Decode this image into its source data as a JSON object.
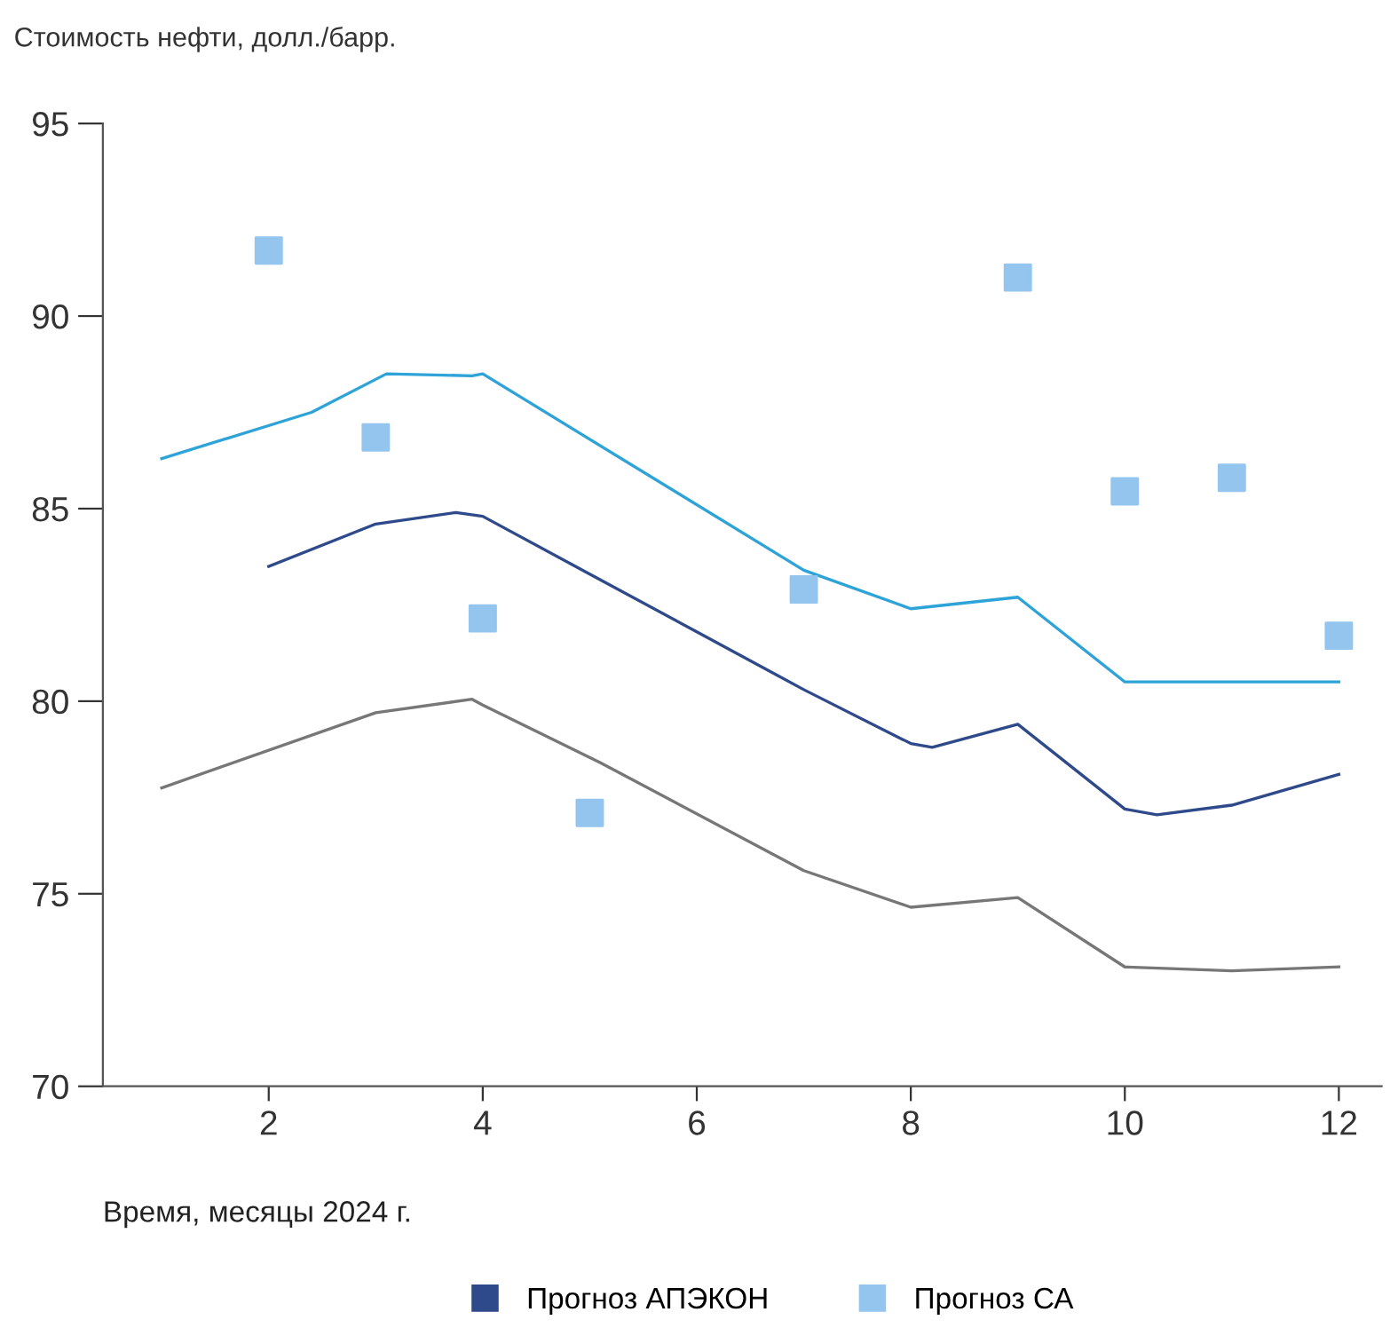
{
  "chart_data": {
    "type": "line",
    "ylabel": "Стоимость нефти, долл./барр.",
    "xlabel": "Время, месяцы 2024 г.",
    "xlim": [
      0.45,
      12.4
    ],
    "xticks": [
      2,
      4,
      6,
      8,
      10,
      12
    ],
    "ylim": [
      70,
      95
    ],
    "yticks": [
      70,
      75,
      80,
      85,
      90,
      95
    ],
    "grid": false,
    "legend": "bottom",
    "series": [
      {
        "color": "#2ea3d8",
        "x": [
          1,
          2.4,
          3.1,
          3.9,
          4,
          7,
          8,
          9,
          10,
          12
        ],
        "values": [
          86.3,
          87.5,
          88.5,
          88.45,
          88.5,
          83.4,
          82.4,
          82.7,
          80.5,
          80.5
        ]
      },
      {
        "name": "Прогноз АПЭКОН",
        "color": "#2e4a8a",
        "x": [
          2,
          3,
          3.75,
          4,
          5,
          6,
          7,
          8,
          8.2,
          9,
          10,
          10.3,
          11,
          12
        ],
        "values": [
          83.5,
          84.6,
          84.9,
          84.8,
          83.3,
          81.8,
          80.3,
          78.9,
          78.8,
          79.4,
          77.2,
          77.05,
          77.3,
          78.1
        ]
      },
      {
        "color": "#777777",
        "x": [
          1,
          3,
          3.9,
          4,
          5.1,
          7,
          8,
          9,
          10,
          11,
          12
        ],
        "values": [
          77.75,
          79.7,
          80.05,
          79.9,
          78.4,
          75.6,
          74.65,
          74.9,
          73.1,
          73.0,
          73.1
        ]
      },
      {
        "type": "scatter",
        "name": "Прогноз СА",
        "color": "#93c5ee",
        "marker": "square",
        "x": [
          2,
          3,
          4,
          5,
          7,
          9,
          10,
          11,
          12
        ],
        "values": [
          91.7,
          86.85,
          82.15,
          77.1,
          82.9,
          91.0,
          85.45,
          85.8,
          81.7
        ]
      }
    ]
  }
}
